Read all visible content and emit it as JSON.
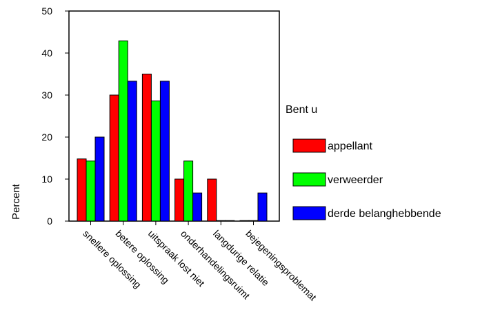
{
  "chart_data": {
    "type": "bar",
    "title": "",
    "xlabel": "",
    "ylabel": "Percent",
    "ylim": [
      0,
      50
    ],
    "yticks": [
      0,
      10,
      20,
      30,
      40,
      50
    ],
    "grid": false,
    "legend_position": "right",
    "legend_title": "Bent u",
    "categories": [
      "snellere oplossing",
      "betere oplossing",
      "uitspraak lost niet",
      "onderhandelingsruimt",
      "langdurige relatie",
      "bejegeningsproblemat"
    ],
    "series": [
      {
        "name": "appellant",
        "color": "#ff0000",
        "values": [
          14.8,
          30,
          35,
          10,
          10,
          0
        ]
      },
      {
        "name": "verweerder",
        "color": "#00ff00",
        "values": [
          14.3,
          42.9,
          28.6,
          14.3,
          0,
          0
        ]
      },
      {
        "name": "derde belanghebbende",
        "color": "#0000ff",
        "values": [
          20,
          33.3,
          33.3,
          6.7,
          0,
          6.7
        ]
      }
    ]
  }
}
